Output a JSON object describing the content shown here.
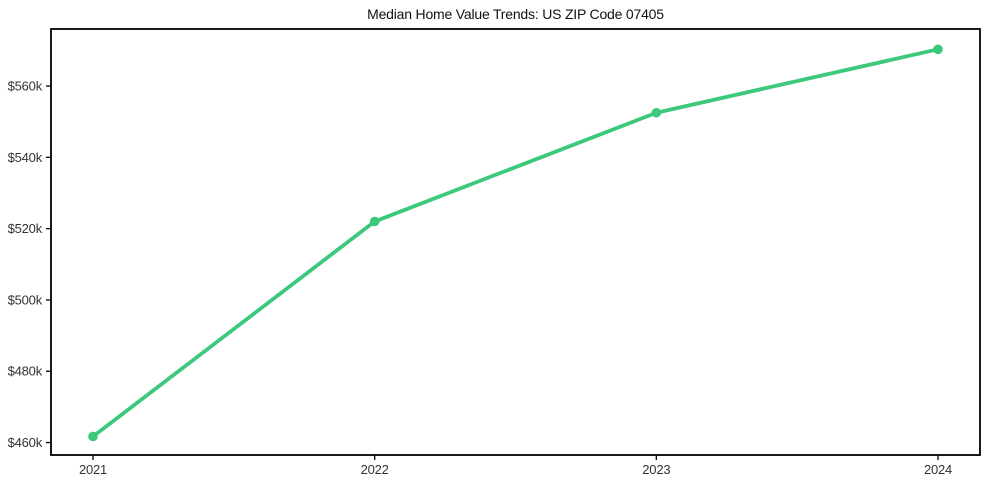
{
  "chart_data": {
    "type": "line",
    "title": "Median Home Value Trends: US ZIP Code 07405",
    "x": [
      "2021",
      "2022",
      "2023",
      "2024"
    ],
    "values": [
      461700,
      522000,
      552500,
      570300
    ],
    "y_ticks": [
      460000,
      480000,
      500000,
      520000,
      540000,
      560000
    ],
    "y_tick_labels": [
      "$460k",
      "$480k",
      "$500k",
      "$520k",
      "$540k",
      "$560k"
    ],
    "ylim": [
      456500,
      576000
    ],
    "xlabel": "",
    "ylabel": "",
    "grid": false,
    "legend": null,
    "line_color": "#3cc97c",
    "marker": "circle",
    "axis_color": "#000000",
    "tick_label_color": "#333333",
    "background_color": "#ffffff"
  }
}
